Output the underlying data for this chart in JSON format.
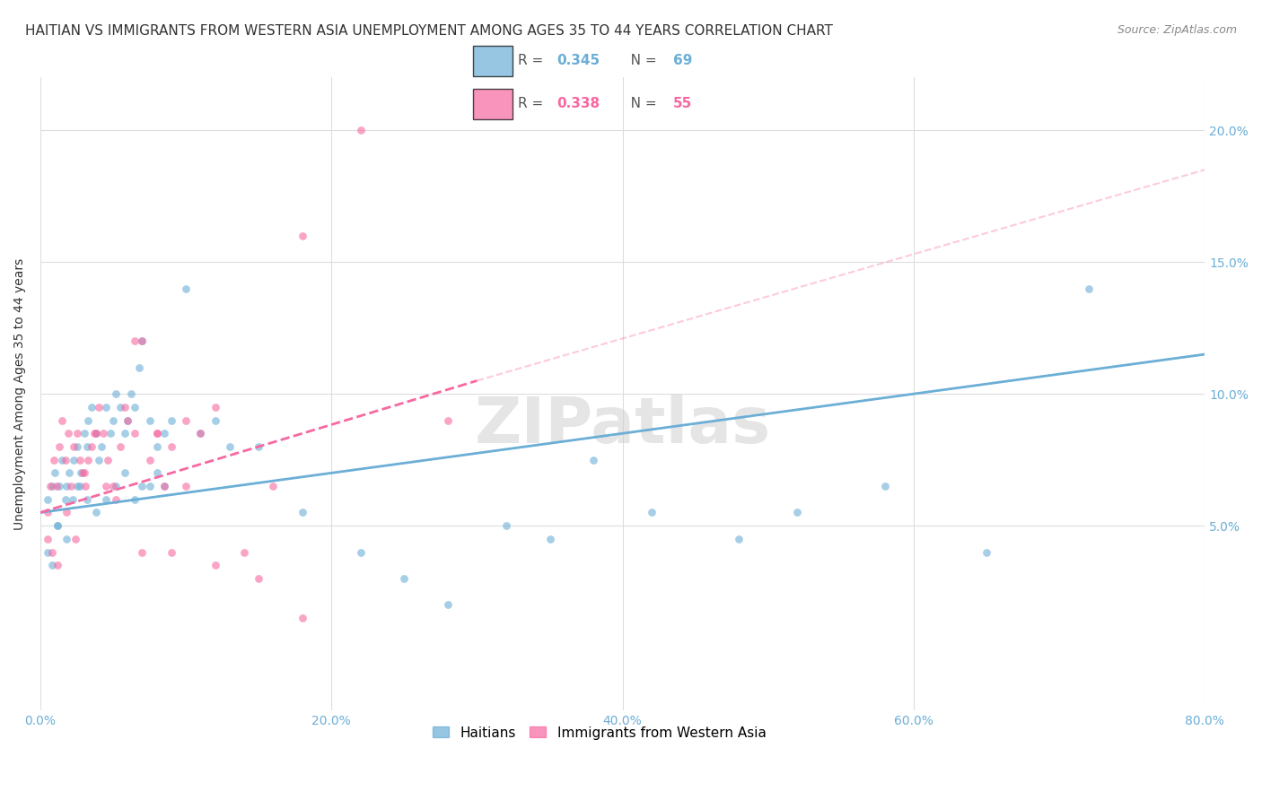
{
  "title": "HAITIAN VS IMMIGRANTS FROM WESTERN ASIA UNEMPLOYMENT AMONG AGES 35 TO 44 YEARS CORRELATION CHART",
  "source": "Source: ZipAtlas.com",
  "ylabel": "Unemployment Among Ages 35 to 44 years",
  "xlabel_ticks": [
    "0.0%",
    "20.0%",
    "40.0%",
    "60.0%",
    "80.0%"
  ],
  "ylabel_ticks": [
    "5.0%",
    "10.0%",
    "15.0%",
    "20.0%"
  ],
  "xlim": [
    0.0,
    0.8
  ],
  "ylim": [
    -0.02,
    0.22
  ],
  "legend1_R": "0.345",
  "legend1_N": "69",
  "legend2_R": "0.338",
  "legend2_N": "55",
  "legend1_color": "#6baed6",
  "legend2_color": "#f768a1",
  "watermark": "ZIPatlas",
  "blue_scatter_x": [
    0.005,
    0.008,
    0.01,
    0.012,
    0.013,
    0.015,
    0.017,
    0.018,
    0.02,
    0.022,
    0.023,
    0.025,
    0.027,
    0.028,
    0.03,
    0.032,
    0.033,
    0.035,
    0.038,
    0.04,
    0.042,
    0.045,
    0.048,
    0.05,
    0.052,
    0.055,
    0.058,
    0.06,
    0.062,
    0.065,
    0.068,
    0.07,
    0.075,
    0.08,
    0.085,
    0.09,
    0.1,
    0.11,
    0.12,
    0.13,
    0.15,
    0.18,
    0.22,
    0.25,
    0.28,
    0.32,
    0.35,
    0.38,
    0.42,
    0.48,
    0.52,
    0.58,
    0.65,
    0.72,
    0.005,
    0.008,
    0.012,
    0.018,
    0.025,
    0.032,
    0.038,
    0.045,
    0.052,
    0.058,
    0.065,
    0.07,
    0.075,
    0.08,
    0.085
  ],
  "blue_scatter_y": [
    0.06,
    0.065,
    0.07,
    0.05,
    0.065,
    0.075,
    0.06,
    0.065,
    0.07,
    0.06,
    0.075,
    0.08,
    0.065,
    0.07,
    0.085,
    0.08,
    0.09,
    0.095,
    0.085,
    0.075,
    0.08,
    0.095,
    0.085,
    0.09,
    0.1,
    0.095,
    0.085,
    0.09,
    0.1,
    0.095,
    0.11,
    0.12,
    0.09,
    0.08,
    0.085,
    0.09,
    0.14,
    0.085,
    0.09,
    0.08,
    0.08,
    0.055,
    0.04,
    0.03,
    0.02,
    0.05,
    0.045,
    0.075,
    0.055,
    0.045,
    0.055,
    0.065,
    0.04,
    0.14,
    0.04,
    0.035,
    0.05,
    0.045,
    0.065,
    0.06,
    0.055,
    0.06,
    0.065,
    0.07,
    0.06,
    0.065,
    0.065,
    0.07,
    0.065
  ],
  "pink_scatter_x": [
    0.005,
    0.007,
    0.009,
    0.011,
    0.013,
    0.015,
    0.017,
    0.019,
    0.021,
    0.023,
    0.025,
    0.027,
    0.029,
    0.031,
    0.033,
    0.035,
    0.037,
    0.04,
    0.043,
    0.046,
    0.05,
    0.055,
    0.06,
    0.065,
    0.07,
    0.075,
    0.08,
    0.085,
    0.09,
    0.1,
    0.11,
    0.12,
    0.14,
    0.16,
    0.18,
    0.005,
    0.008,
    0.012,
    0.018,
    0.024,
    0.03,
    0.038,
    0.045,
    0.052,
    0.058,
    0.065,
    0.07,
    0.08,
    0.09,
    0.1,
    0.12,
    0.15,
    0.18,
    0.22,
    0.28
  ],
  "pink_scatter_y": [
    0.055,
    0.065,
    0.075,
    0.065,
    0.08,
    0.09,
    0.075,
    0.085,
    0.065,
    0.08,
    0.085,
    0.075,
    0.07,
    0.065,
    0.075,
    0.08,
    0.085,
    0.095,
    0.085,
    0.075,
    0.065,
    0.08,
    0.09,
    0.12,
    0.12,
    0.075,
    0.085,
    0.065,
    0.08,
    0.09,
    0.085,
    0.095,
    0.04,
    0.065,
    0.16,
    0.045,
    0.04,
    0.035,
    0.055,
    0.045,
    0.07,
    0.085,
    0.065,
    0.06,
    0.095,
    0.085,
    0.04,
    0.085,
    0.04,
    0.065,
    0.035,
    0.03,
    0.015,
    0.2,
    0.09
  ],
  "blue_line_x": [
    0.0,
    0.8
  ],
  "blue_line_y": [
    0.055,
    0.115
  ],
  "pink_line_x": [
    0.0,
    0.3
  ],
  "pink_line_y": [
    0.055,
    0.105
  ],
  "title_fontsize": 11,
  "axis_label_fontsize": 10,
  "tick_fontsize": 10,
  "scatter_size": 40,
  "scatter_alpha": 0.6,
  "grid_color": "#dddddd",
  "background_color": "#ffffff",
  "blue_color": "#6baed6",
  "pink_color": "#f768a1"
}
